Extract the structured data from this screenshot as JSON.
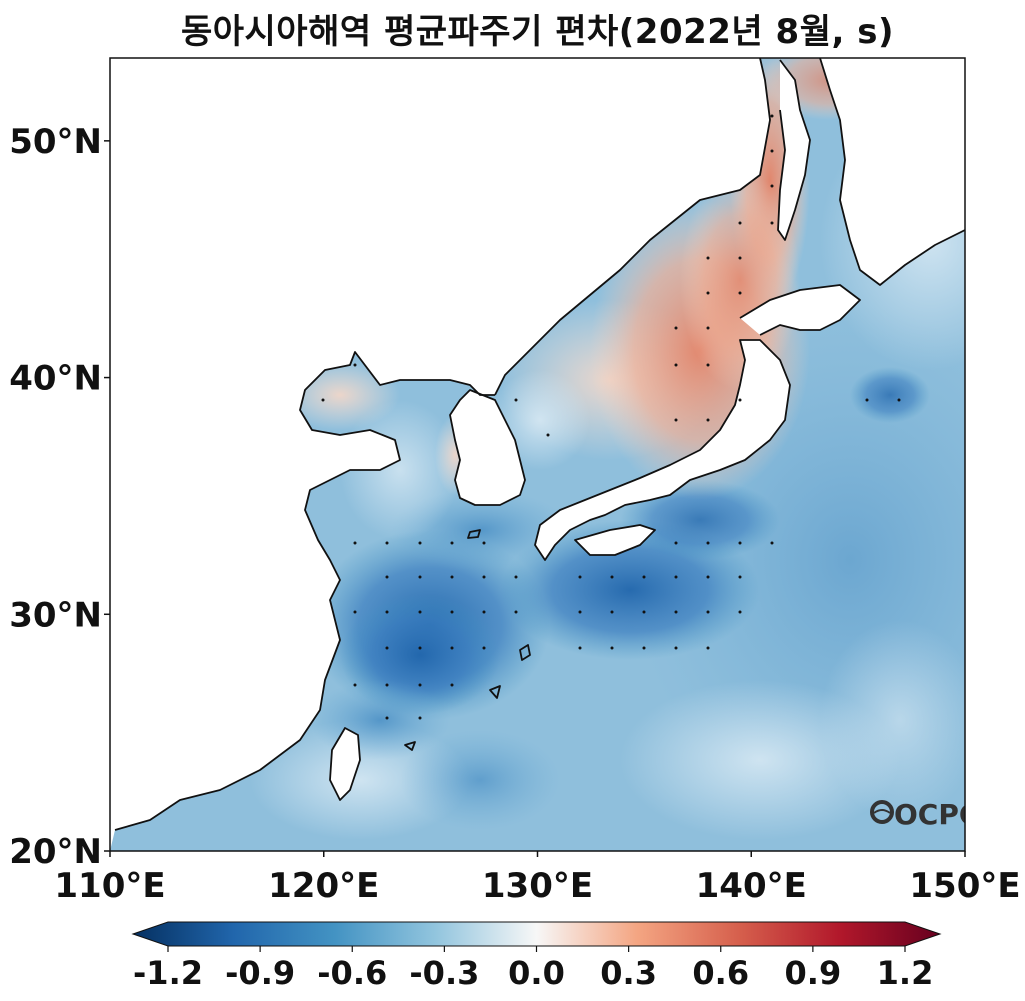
{
  "title": "동아시아해역 평균파주기 편차(2022년 8월, s)",
  "map": {
    "lon_labels": [
      "110°E",
      "120°E",
      "130°E",
      "140°E",
      "150°E"
    ],
    "lat_labels": [
      "50°N",
      "40°N",
      "30°N",
      "20°N"
    ],
    "lon_range": [
      110,
      150
    ],
    "lat_range": [
      20,
      53.5
    ],
    "logo_text": "OCPC"
  },
  "colorbar": {
    "ticks": [
      "-1.2",
      "-0.9",
      "-0.6",
      "-0.3",
      "0.0",
      "0.3",
      "0.6",
      "0.9",
      "1.2"
    ],
    "range": [
      -1.2,
      1.2
    ],
    "colors": [
      "#053061",
      "#2166ac",
      "#4393c3",
      "#92c5de",
      "#f7f7f7",
      "#f4a582",
      "#d6604d",
      "#b2182b",
      "#67001f"
    ]
  }
}
